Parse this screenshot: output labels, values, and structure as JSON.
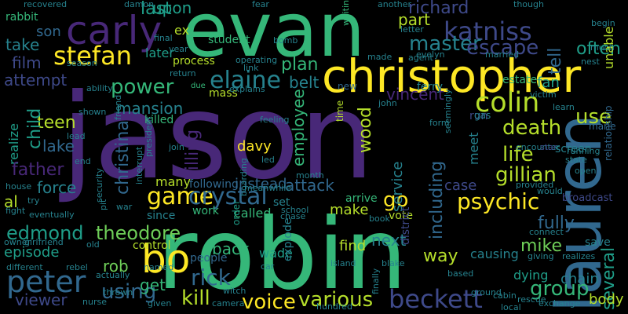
{
  "palette": {
    "purple_dark": "#440154",
    "purple": "#482878",
    "indigo": "#3e4989",
    "blue": "#31688e",
    "teal": "#26828e",
    "teal_green": "#1f9e89",
    "green": "#35b779",
    "light_green": "#6ece58",
    "lime": "#b5de2b",
    "yellow": "#fde725"
  },
  "words": [
    {
      "text": "jason",
      "color": "#482878"
    },
    {
      "text": "robin",
      "color": "#35b779"
    },
    {
      "text": "evan",
      "color": "#35b779"
    },
    {
      "text": "lauren",
      "color": "#31688e"
    },
    {
      "text": "christopher",
      "color": "#fde725"
    },
    {
      "text": "carly",
      "color": "#482878"
    },
    {
      "text": "katniss",
      "color": "#3e4989"
    },
    {
      "text": "beckett",
      "color": "#3e4989"
    },
    {
      "text": "colin",
      "color": "#b5de2b"
    },
    {
      "text": "bo",
      "color": "#fde725"
    },
    {
      "text": "peter",
      "color": "#31688e"
    },
    {
      "text": "psychic",
      "color": "#fde725"
    },
    {
      "text": "stefan",
      "color": "#fde725"
    },
    {
      "text": "elaine",
      "color": "#26828e"
    },
    {
      "text": "game",
      "color": "#fde725"
    },
    {
      "text": "crystal",
      "color": "#31688e"
    },
    {
      "text": "power",
      "color": "#35b779"
    },
    {
      "text": "master",
      "color": "#26828e"
    },
    {
      "text": "escape",
      "color": "#3e4989"
    },
    {
      "text": "death",
      "color": "#b5de2b"
    },
    {
      "text": "life",
      "color": "#b5de2b"
    },
    {
      "text": "gillian",
      "color": "#b5de2b"
    },
    {
      "text": "group",
      "color": "#35b779"
    },
    {
      "text": "voice",
      "color": "#fde725"
    },
    {
      "text": "various",
      "color": "#b5de2b"
    },
    {
      "text": "rick",
      "color": "#31688e"
    },
    {
      "text": "kill",
      "color": "#b5de2b"
    },
    {
      "text": "using",
      "color": "#31688e"
    },
    {
      "text": "edmond",
      "color": "#1f9e89"
    },
    {
      "text": "theodore",
      "color": "#6ece58"
    },
    {
      "text": "instead",
      "color": "#31688e"
    },
    {
      "text": "attack",
      "color": "#31688e"
    },
    {
      "text": "including",
      "color": "#31688e"
    },
    {
      "text": "mike",
      "color": "#6ece58"
    },
    {
      "text": "several",
      "color": "#1f9e89"
    },
    {
      "text": "fully",
      "color": "#31688e"
    },
    {
      "text": "christina",
      "color": "#31688e"
    },
    {
      "text": "killing",
      "color": "#482878"
    },
    {
      "text": "employee",
      "color": "#35b779"
    },
    {
      "text": "wood",
      "color": "#b5de2b"
    },
    {
      "text": "go",
      "color": "#fde725"
    },
    {
      "text": "meet",
      "color": "#26828e"
    },
    {
      "text": "use",
      "color": "#b5de2b"
    },
    {
      "text": "tell",
      "color": "#31688e"
    },
    {
      "text": "fan",
      "color": "#1f9e89"
    },
    {
      "text": "often",
      "color": "#1f9e89"
    },
    {
      "text": "richard",
      "color": "#3e4989"
    },
    {
      "text": "part",
      "color": "#b5de2b"
    },
    {
      "text": "last",
      "color": "#1f9e89"
    },
    {
      "text": "upon",
      "color": "#1f9e89"
    },
    {
      "text": "son",
      "color": "#31688e"
    },
    {
      "text": "take",
      "color": "#26828e"
    },
    {
      "text": "film",
      "color": "#3e4989"
    },
    {
      "text": "attempt",
      "color": "#3e4989"
    },
    {
      "text": "teen",
      "color": "#b5de2b"
    },
    {
      "text": "child",
      "color": "#1f9e89"
    },
    {
      "text": "realize",
      "color": "#1f9e89"
    },
    {
      "text": "lake",
      "color": "#31688e"
    },
    {
      "text": "father",
      "color": "#482878"
    },
    {
      "text": "force",
      "color": "#26828e"
    },
    {
      "text": "al",
      "color": "#b5de2b"
    },
    {
      "text": "episode",
      "color": "#1f9e89"
    },
    {
      "text": "viewer",
      "color": "#3e4989"
    },
    {
      "text": "rob",
      "color": "#6ece58"
    },
    {
      "text": "get",
      "color": "#35b779"
    },
    {
      "text": "plan",
      "color": "#35b779"
    },
    {
      "text": "belt",
      "color": "#26828e"
    },
    {
      "text": "mansion",
      "color": "#26828e"
    },
    {
      "text": "later",
      "color": "#1f9e89"
    },
    {
      "text": "vincent",
      "color": "#482878"
    },
    {
      "text": "service",
      "color": "#26828e"
    },
    {
      "text": "make",
      "color": "#b5de2b"
    },
    {
      "text": "next",
      "color": "#26828e"
    },
    {
      "text": "way",
      "color": "#b5de2b"
    },
    {
      "text": "case",
      "color": "#3e4989"
    },
    {
      "text": "back",
      "color": "#35b779"
    },
    {
      "text": "find",
      "color": "#b5de2b"
    },
    {
      "text": "wade",
      "color": "#1f9e89"
    },
    {
      "text": "chain",
      "color": "#26828e"
    },
    {
      "text": "body",
      "color": "#b5de2b"
    },
    {
      "text": "dying",
      "color": "#1f9e89"
    },
    {
      "text": "causing",
      "color": "#26828e"
    },
    {
      "text": "called",
      "color": "#35b779"
    },
    {
      "text": "work",
      "color": "#35b779"
    },
    {
      "text": "since",
      "color": "#26828e"
    },
    {
      "text": "many",
      "color": "#b5de2b"
    },
    {
      "text": "following",
      "color": "#31688e"
    },
    {
      "text": "davy",
      "color": "#fde725"
    },
    {
      "text": "control",
      "color": "#b5de2b"
    },
    {
      "text": "people",
      "color": "#31688e"
    },
    {
      "text": "unable",
      "color": "#b5de2b"
    },
    {
      "text": "killed",
      "color": "#35b779"
    },
    {
      "text": "ex",
      "color": "#b5de2b"
    },
    {
      "text": "student",
      "color": "#35b779"
    },
    {
      "text": "process",
      "color": "#b5de2b"
    },
    {
      "text": "mass",
      "color": "#b5de2b"
    },
    {
      "text": "due",
      "color": "#35b779"
    },
    {
      "text": "ferry",
      "color": "#26828e"
    },
    {
      "text": "estate",
      "color": "#35b779"
    },
    {
      "text": "run",
      "color": "#3e4989"
    },
    {
      "text": "gas",
      "color": "#26828e"
    },
    {
      "text": "screen",
      "color": "#26828e"
    },
    {
      "text": "marie",
      "color": "#31688e"
    },
    {
      "text": "relationship",
      "color": "#31688e"
    },
    {
      "text": "new",
      "color": "#31688e"
    },
    {
      "text": "time",
      "color": "#b5de2b"
    },
    {
      "text": "arrive",
      "color": "#35b779"
    },
    {
      "text": "vote",
      "color": "#b5de2b"
    },
    {
      "text": "district",
      "color": "#3e4989"
    },
    {
      "text": "explode",
      "color": "#26828e"
    },
    {
      "text": "order",
      "color": "#1f9e89"
    },
    {
      "text": "set",
      "color": "#26828e"
    },
    {
      "text": "save",
      "color": "#26828e"
    },
    {
      "text": "rabbit",
      "color": "#35b779"
    },
    {
      "text": "recovered",
      "color": "#26828e"
    },
    {
      "text": "damon",
      "color": "#26828e"
    },
    {
      "text": "fear",
      "color": "#26828e"
    },
    {
      "text": "another",
      "color": "#26828e"
    },
    {
      "text": "though",
      "color": "#26828e"
    },
    {
      "text": "letter",
      "color": "#26828e"
    },
    {
      "text": "evelyn",
      "color": "#26828e"
    },
    {
      "text": "married",
      "color": "#26828e"
    },
    {
      "text": "waiting",
      "color": "#35b779"
    },
    {
      "text": "operating",
      "color": "#26828e"
    },
    {
      "text": "link",
      "color": "#26828e"
    },
    {
      "text": "bomb",
      "color": "#26828e"
    },
    {
      "text": "final",
      "color": "#26828e"
    },
    {
      "text": "year",
      "color": "#26828e"
    },
    {
      "text": "return",
      "color": "#26828e"
    },
    {
      "text": "ability",
      "color": "#26828e"
    },
    {
      "text": "season",
      "color": "#26828e"
    },
    {
      "text": "explains",
      "color": "#26828e"
    },
    {
      "text": "victim",
      "color": "#26828e"
    },
    {
      "text": "learn",
      "color": "#26828e"
    },
    {
      "text": "nest",
      "color": "#26828e"
    },
    {
      "text": "much",
      "color": "#26828e"
    },
    {
      "text": "begin",
      "color": "#26828e"
    },
    {
      "text": "shown",
      "color": "#26828e"
    },
    {
      "text": "lead",
      "color": "#26828e"
    },
    {
      "text": "end",
      "color": "#26828e"
    },
    {
      "text": "fight",
      "color": "#26828e"
    },
    {
      "text": "house",
      "color": "#26828e"
    },
    {
      "text": "try",
      "color": "#26828e"
    },
    {
      "text": "eventually",
      "color": "#26828e"
    },
    {
      "text": "owner",
      "color": "#26828e"
    },
    {
      "text": "girlfriend",
      "color": "#26828e"
    },
    {
      "text": "different",
      "color": "#26828e"
    },
    {
      "text": "rebel",
      "color": "#26828e"
    },
    {
      "text": "old",
      "color": "#26828e"
    },
    {
      "text": "nurse",
      "color": "#26828e"
    },
    {
      "text": "given",
      "color": "#26828e"
    },
    {
      "text": "actually",
      "color": "#26828e"
    },
    {
      "text": "named",
      "color": "#26828e"
    },
    {
      "text": "thrown",
      "color": "#26828e"
    },
    {
      "text": "camera",
      "color": "#26828e"
    },
    {
      "text": "witch",
      "color": "#26828e"
    },
    {
      "text": "hundred",
      "color": "#26828e"
    },
    {
      "text": "war",
      "color": "#26828e"
    },
    {
      "text": "pit",
      "color": "#26828e"
    },
    {
      "text": "security",
      "color": "#26828e"
    },
    {
      "text": "interrupt",
      "color": "#26828e"
    },
    {
      "text": "friend",
      "color": "#26828e"
    },
    {
      "text": "president",
      "color": "#26828e"
    },
    {
      "text": "join",
      "color": "#26828e"
    },
    {
      "text": "boarding",
      "color": "#26828e"
    },
    {
      "text": "meanwhile",
      "color": "#26828e"
    },
    {
      "text": "led",
      "color": "#26828e"
    },
    {
      "text": "month",
      "color": "#26828e"
    },
    {
      "text": "feeling",
      "color": "#26828e"
    },
    {
      "text": "school",
      "color": "#26828e"
    },
    {
      "text": "chase",
      "color": "#26828e"
    },
    {
      "text": "car",
      "color": "#26828e"
    },
    {
      "text": "island",
      "color": "#26828e"
    },
    {
      "text": "book",
      "color": "#26828e"
    },
    {
      "text": "finally",
      "color": "#26828e"
    },
    {
      "text": "blake",
      "color": "#26828e"
    },
    {
      "text": "based",
      "color": "#26828e"
    },
    {
      "text": "cabin",
      "color": "#26828e"
    },
    {
      "text": "ground",
      "color": "#26828e"
    },
    {
      "text": "rescue",
      "color": "#26828e"
    },
    {
      "text": "local",
      "color": "#26828e"
    },
    {
      "text": "exchange",
      "color": "#26828e"
    },
    {
      "text": "giving",
      "color": "#26828e"
    },
    {
      "text": "realizes",
      "color": "#26828e"
    },
    {
      "text": "connect",
      "color": "#26828e"
    },
    {
      "text": "broadcast",
      "color": "#3e4989"
    },
    {
      "text": "would",
      "color": "#26828e"
    },
    {
      "text": "open",
      "color": "#26828e"
    },
    {
      "text": "provided",
      "color": "#26828e"
    },
    {
      "text": "encounter",
      "color": "#26828e"
    },
    {
      "text": "star",
      "color": "#3e4989"
    },
    {
      "text": "state",
      "color": "#26828e"
    },
    {
      "text": "running",
      "color": "#26828e"
    },
    {
      "text": "form",
      "color": "#26828e"
    },
    {
      "text": "john",
      "color": "#26828e"
    },
    {
      "text": "seemingly",
      "color": "#26828e"
    },
    {
      "text": "made",
      "color": "#26828e"
    },
    {
      "text": "agent",
      "color": "#26828e"
    }
  ]
}
